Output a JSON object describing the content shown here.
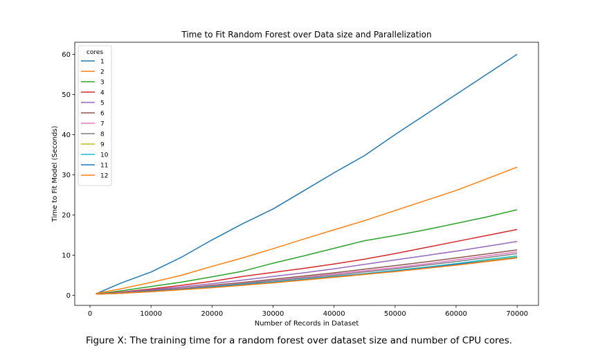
{
  "chart_data": {
    "type": "line",
    "title": "Time to Fit Random Forest over Data size and Parallelization",
    "xlabel": "Number of Records in Dataset",
    "ylabel": "Time to Fit Model (Seconds)",
    "xlim": [
      -2500,
      73500
    ],
    "ylim": [
      -2.5,
      63
    ],
    "xticks": [
      0,
      10000,
      20000,
      30000,
      40000,
      50000,
      60000,
      70000
    ],
    "xtick_labels": [
      "0",
      "10000",
      "20000",
      "30000",
      "40000",
      "50000",
      "60000",
      "70000"
    ],
    "yticks": [
      0,
      10,
      20,
      30,
      40,
      50,
      60
    ],
    "ytick_labels": [
      "0",
      "10",
      "20",
      "30",
      "40",
      "50",
      "60"
    ],
    "grid": false,
    "legend": {
      "title": "cores",
      "placement": "top-left"
    },
    "x": [
      1000,
      5000,
      10000,
      15000,
      20000,
      25000,
      30000,
      35000,
      40000,
      45000,
      50000,
      55000,
      60000,
      65000,
      70000
    ],
    "series": [
      {
        "name": "1",
        "color": "#1f77b4",
        "values": [
          0.4,
          3.0,
          5.8,
          9.5,
          13.8,
          17.8,
          21.5,
          26.0,
          30.5,
          34.8,
          40.0,
          45.0,
          50.0,
          55.0,
          60.0
        ]
      },
      {
        "name": "2",
        "color": "#ff7f0e",
        "values": [
          0.5,
          1.6,
          3.2,
          5.0,
          7.2,
          9.3,
          11.6,
          14.0,
          16.3,
          18.6,
          21.1,
          23.6,
          26.1,
          29.0,
          31.9
        ]
      },
      {
        "name": "3",
        "color": "#2ca02c",
        "values": [
          0.3,
          1.1,
          2.2,
          3.3,
          4.6,
          6.0,
          8.0,
          9.8,
          11.7,
          13.6,
          14.9,
          16.3,
          17.9,
          19.5,
          21.3
        ]
      },
      {
        "name": "4",
        "color": "#d62728",
        "values": [
          0.3,
          0.8,
          1.6,
          2.5,
          3.5,
          4.7,
          5.7,
          6.7,
          7.8,
          9.0,
          10.4,
          11.9,
          13.4,
          14.9,
          16.4
        ]
      },
      {
        "name": "5",
        "color": "#9467bd",
        "values": [
          0.3,
          0.7,
          1.4,
          2.1,
          2.9,
          3.8,
          4.7,
          5.6,
          6.6,
          7.7,
          8.8,
          9.9,
          11.0,
          12.2,
          13.4
        ]
      },
      {
        "name": "6",
        "color": "#8c564b",
        "values": [
          0.3,
          0.6,
          1.2,
          1.8,
          2.5,
          3.2,
          4.0,
          4.8,
          5.6,
          6.5,
          7.4,
          8.3,
          9.3,
          10.3,
          11.3
        ]
      },
      {
        "name": "7",
        "color": "#e377c2",
        "values": [
          0.3,
          0.6,
          1.1,
          1.7,
          2.3,
          3.0,
          3.7,
          4.5,
          5.3,
          6.1,
          6.9,
          7.8,
          8.8,
          9.8,
          10.8
        ]
      },
      {
        "name": "8",
        "color": "#7f7f7f",
        "values": [
          0.3,
          0.6,
          1.1,
          1.6,
          2.2,
          2.9,
          3.6,
          4.3,
          5.0,
          5.8,
          6.6,
          7.5,
          8.4,
          9.4,
          10.4
        ]
      },
      {
        "name": "9",
        "color": "#bcbd22",
        "values": [
          0.3,
          0.5,
          1.0,
          1.5,
          2.0,
          2.6,
          3.2,
          3.8,
          4.5,
          5.2,
          6.0,
          6.8,
          7.7,
          8.6,
          9.5
        ]
      },
      {
        "name": "10",
        "color": "#17becf",
        "values": [
          0.3,
          0.5,
          1.0,
          1.5,
          2.1,
          2.7,
          3.3,
          4.0,
          4.7,
          5.4,
          6.2,
          7.0,
          7.9,
          8.9,
          9.8
        ]
      },
      {
        "name": "11",
        "color": "#1f77b4",
        "values": [
          0.3,
          0.5,
          1.0,
          1.5,
          2.0,
          2.6,
          3.2,
          3.9,
          4.6,
          5.3,
          6.0,
          6.8,
          7.7,
          8.5,
          9.4
        ]
      },
      {
        "name": "12",
        "color": "#ff7f0e",
        "values": [
          0.3,
          0.5,
          0.9,
          1.4,
          1.9,
          2.5,
          3.1,
          3.8,
          4.5,
          5.2,
          5.9,
          6.7,
          7.5,
          8.4,
          9.3
        ]
      }
    ]
  },
  "caption": "Figure X: The training time for a random forest over dataset size and number of CPU cores."
}
